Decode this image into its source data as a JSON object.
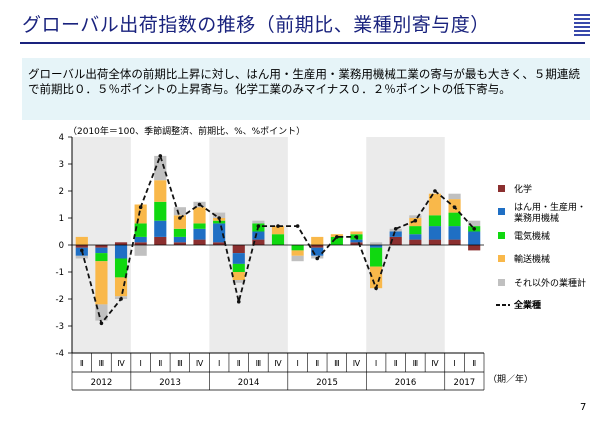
{
  "header": {
    "title": "グローバル出荷指数の推移（前期比、業種別寄与度）"
  },
  "summary": {
    "text": "グローバル出荷全体の前期比上昇に対し、はん用・生産用・業務用機械工業の寄与が最も大きく、５期連続で前期比０．５％ポイントの上昇寄与。化学工業のみマイナス０．２％ポイントの低下寄与。"
  },
  "page_number": "7",
  "chart_data": {
    "type": "bar",
    "stacked": true,
    "unit_label": "（2010年＝100、季節調整済、前期比、%、%ポイント）",
    "x_unit_label": "（期／年）",
    "ylim": [
      -4,
      4
    ],
    "yticks": [
      "4",
      "3",
      "2",
      "1",
      "0",
      "-1",
      "-2",
      "-3",
      "-4"
    ],
    "quarters": [
      "Ⅱ",
      "Ⅲ",
      "Ⅳ",
      "Ⅰ",
      "Ⅱ",
      "Ⅲ",
      "Ⅳ",
      "Ⅰ",
      "Ⅱ",
      "Ⅲ",
      "Ⅳ",
      "Ⅰ",
      "Ⅱ",
      "Ⅲ",
      "Ⅳ",
      "Ⅰ",
      "Ⅱ",
      "Ⅲ",
      "Ⅳ",
      "Ⅰ",
      "Ⅱ"
    ],
    "years": [
      {
        "label": "2012",
        "start": 0,
        "count": 3
      },
      {
        "label": "2013",
        "start": 3,
        "count": 4
      },
      {
        "label": "2014",
        "start": 7,
        "count": 4
      },
      {
        "label": "2015",
        "start": 11,
        "count": 4
      },
      {
        "label": "2016",
        "start": 15,
        "count": 4
      },
      {
        "label": "2017",
        "start": 19,
        "count": 2
      }
    ],
    "shaded_years": [
      "2012",
      "2014",
      "2016"
    ],
    "legend_position": "right",
    "series": [
      {
        "name": "化学",
        "color": "#8b2f2f",
        "values": [
          -0.1,
          -0.1,
          0.1,
          0.1,
          0.3,
          0.1,
          0.2,
          0.1,
          -0.3,
          0.2,
          0.0,
          0.0,
          -0.1,
          0.0,
          0.1,
          0.0,
          0.3,
          0.2,
          0.2,
          0.2,
          -0.2
        ]
      },
      {
        "name": "はん用・生産用・業務用機械",
        "color": "#1f6fc4",
        "values": [
          -0.3,
          -0.2,
          -0.5,
          0.2,
          0.6,
          0.2,
          0.4,
          0.7,
          -0.4,
          0.3,
          0.0,
          0.0,
          -0.3,
          0.0,
          0.1,
          -0.1,
          0.2,
          0.2,
          0.5,
          0.5,
          0.5
        ]
      },
      {
        "name": "電気機械",
        "color": "#10d810",
        "values": [
          0.0,
          -0.3,
          -0.7,
          0.5,
          0.7,
          0.3,
          0.2,
          0.1,
          -0.3,
          0.3,
          0.4,
          -0.2,
          0.0,
          0.3,
          0.2,
          -0.7,
          0.0,
          0.3,
          0.4,
          0.5,
          0.2
        ]
      },
      {
        "name": "輸送機械",
        "color": "#f9b84a",
        "values": [
          0.3,
          -1.6,
          -0.7,
          0.7,
          0.8,
          0.5,
          0.6,
          0.1,
          -0.3,
          0.0,
          0.3,
          -0.2,
          0.3,
          0.1,
          0.1,
          -0.8,
          0.0,
          0.3,
          0.8,
          0.5,
          0.0
        ]
      },
      {
        "name": "それ以外の業種計",
        "color": "#c0c0c0",
        "values": [
          -0.1,
          -0.6,
          -0.1,
          -0.4,
          0.9,
          0.3,
          0.2,
          0.2,
          -0.1,
          0.1,
          0.0,
          -0.2,
          -0.1,
          0.0,
          0.0,
          0.1,
          0.1,
          0.1,
          0.0,
          0.2,
          0.2
        ]
      },
      {
        "name": "全業種",
        "color": "#111111",
        "kind": "line",
        "values": [
          -0.2,
          -2.9,
          -2.0,
          1.4,
          3.3,
          1.0,
          1.5,
          1.0,
          -2.1,
          0.7,
          0.7,
          0.7,
          -0.5,
          0.3,
          0.3,
          -1.6,
          0.6,
          0.9,
          2.0,
          1.4,
          0.6
        ]
      }
    ]
  }
}
